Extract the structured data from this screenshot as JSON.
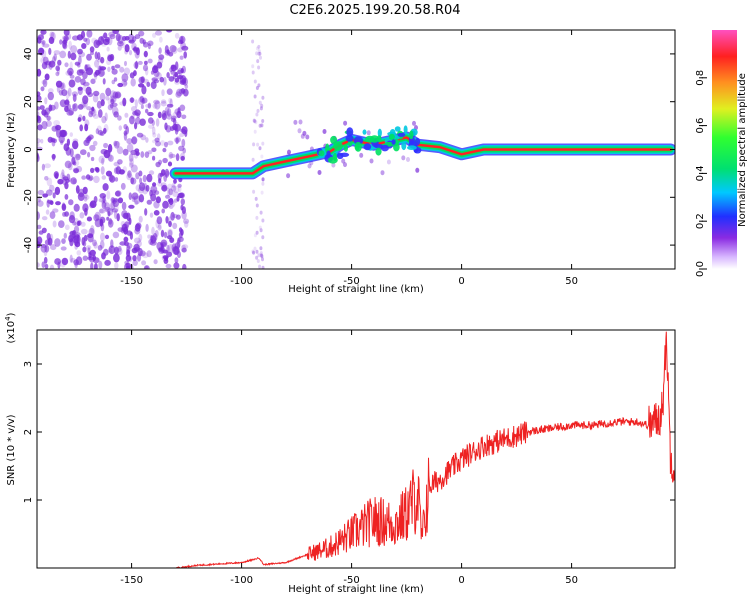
{
  "title": "C2E6.2025.199.20.58.R04",
  "colors": {
    "snr_line": "#ee2222",
    "ridge_core": "#ff2222",
    "ridge_mid": "#00e060",
    "ridge_outer": "#00c8e0",
    "ridge_edge": "#3030ff",
    "noise": "#7a2cd8"
  },
  "chart_data": [
    {
      "type": "heatmap",
      "xlabel": "Height of straight line (km)",
      "ylabel": "Frequency (Hz)",
      "xlim": [
        -193,
        97
      ],
      "ylim": [
        -50,
        50
      ],
      "xticks": [
        -150,
        -100,
        -50,
        0,
        50
      ],
      "yticks": [
        40,
        20,
        0,
        -20,
        -40
      ],
      "ridge": {
        "x": [
          -130,
          -120,
          -110,
          -100,
          -95,
          -90,
          -80,
          -70,
          -60,
          -55,
          -50,
          -45,
          -40,
          -35,
          -30,
          -25,
          -20,
          -10,
          0,
          10,
          20,
          50,
          80,
          95
        ],
        "y": [
          -10,
          -10,
          -10,
          -10,
          -10,
          -7,
          -5,
          -3,
          -1,
          2,
          4,
          3,
          2,
          3,
          4,
          5,
          2,
          1,
          -2,
          0,
          0,
          0,
          0,
          0
        ]
      },
      "colorbar": {
        "label": "Normalized spectral amplitude",
        "ticks": [
          0.0,
          0.2,
          0.4,
          0.6,
          0.8
        ],
        "range": [
          0,
          1
        ]
      }
    },
    {
      "type": "line",
      "xlabel": "Height of straight line (km)",
      "ylabel": "SNR (10 * v/v)",
      "exponent_label": "(x10",
      "exponent_power": "4",
      "exponent_close": ")",
      "xlim": [
        -193,
        97
      ],
      "ylim": [
        0,
        3.5
      ],
      "xticks": [
        -150,
        -100,
        -50,
        0,
        50
      ],
      "yticks": [
        1,
        2,
        3
      ],
      "series": [
        {
          "x": [
            -193,
            -130,
            -120,
            -110,
            -100,
            -95,
            -92,
            -90,
            -80,
            -70,
            -60,
            -50,
            -40,
            -30,
            -25,
            -20,
            -18,
            -15,
            -10,
            0,
            10,
            20,
            30,
            40,
            50,
            60,
            70,
            80,
            85,
            90,
            92,
            93,
            95,
            97
          ],
          "values": [
            0.0,
            0.0,
            0.04,
            0.06,
            0.08,
            0.12,
            0.15,
            0.05,
            0.08,
            0.2,
            0.3,
            0.5,
            0.7,
            0.65,
            0.8,
            1.1,
            0.4,
            1.2,
            1.3,
            1.6,
            1.8,
            1.9,
            2.0,
            2.05,
            2.1,
            2.1,
            2.15,
            2.15,
            2.1,
            2.2,
            2.6,
            3.5,
            1.6,
            1.5
          ]
        }
      ]
    }
  ]
}
